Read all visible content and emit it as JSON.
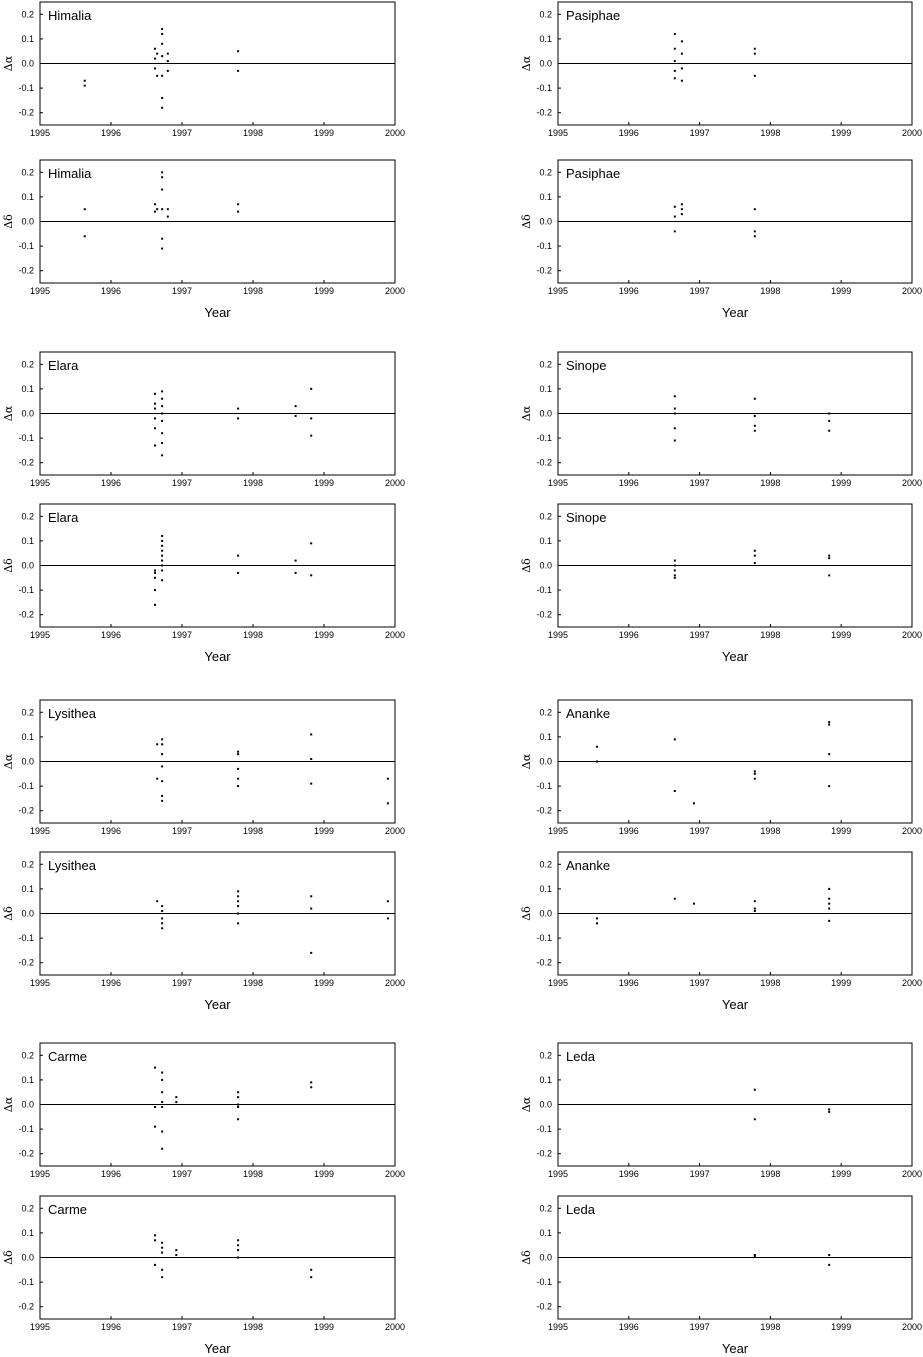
{
  "chart_data": [
    {
      "type": "scatter",
      "title": "Himalia",
      "ylabel": "Δα",
      "xlim": [
        1995,
        2000
      ],
      "ylim": [
        -0.25,
        0.25
      ],
      "xticks": [
        1995,
        1996,
        1997,
        1998,
        1999,
        2000
      ],
      "yticks": [
        -0.2,
        -0.1,
        {
          "value": 0,
          "label": "0.0"
        },
        0.1,
        0.2
      ],
      "color": "#000000",
      "x": [
        1995.63,
        1995.63,
        1996.62,
        1996.62,
        1996.62,
        1996.65,
        1996.65,
        1996.72,
        1996.72,
        1996.72,
        1996.72,
        1996.72,
        1996.72,
        1996.72,
        1996.8,
        1996.8,
        1996.8,
        1997.79,
        1997.79
      ],
      "y": [
        -0.07,
        -0.09,
        0.06,
        0.02,
        -0.02,
        0.04,
        -0.05,
        0.14,
        0.12,
        0.08,
        0.03,
        -0.05,
        -0.14,
        -0.18,
        0.04,
        0.01,
        -0.03,
        0.05,
        -0.03
      ]
    },
    {
      "type": "scatter",
      "title": "Pasiphae",
      "ylabel": "Δα",
      "xlim": [
        1995,
        2000
      ],
      "ylim": [
        -0.25,
        0.25
      ],
      "xticks": [
        1995,
        1996,
        1997,
        1998,
        1999,
        2000
      ],
      "yticks": [
        -0.2,
        -0.1,
        {
          "value": 0,
          "label": "0.0"
        },
        0.1,
        0.2
      ],
      "color": "#000000",
      "x": [
        1996.65,
        1996.65,
        1996.65,
        1996.65,
        1996.65,
        1996.75,
        1996.75,
        1996.75,
        1996.75,
        1997.78,
        1997.78,
        1997.78
      ],
      "y": [
        0.12,
        0.06,
        0.01,
        -0.03,
        -0.06,
        0.09,
        0.04,
        -0.02,
        -0.07,
        0.06,
        0.04,
        -0.05
      ]
    },
    {
      "type": "scatter",
      "title": "Himalia",
      "ylabel": "Δδ",
      "xlabel": "Year",
      "xlim": [
        1995,
        2000
      ],
      "ylim": [
        -0.25,
        0.25
      ],
      "xticks": [
        1995,
        1996,
        1997,
        1998,
        1999,
        2000
      ],
      "yticks": [
        -0.2,
        -0.1,
        {
          "value": 0,
          "label": "0.0"
        },
        0.1,
        0.2
      ],
      "color": "#000000",
      "x": [
        1995.63,
        1995.63,
        1996.62,
        1996.62,
        1996.65,
        1996.72,
        1996.72,
        1996.72,
        1996.72,
        1996.72,
        1996.72,
        1996.8,
        1996.8,
        1997.79,
        1997.79
      ],
      "y": [
        0.05,
        -0.06,
        0.07,
        0.04,
        0.05,
        0.2,
        0.18,
        0.13,
        0.05,
        -0.07,
        -0.11,
        0.05,
        0.02,
        0.07,
        0.04
      ]
    },
    {
      "type": "scatter",
      "title": "Pasiphae",
      "ylabel": "Δδ",
      "xlabel": "Year",
      "xlim": [
        1995,
        2000
      ],
      "ylim": [
        -0.25,
        0.25
      ],
      "xticks": [
        1995,
        1996,
        1997,
        1998,
        1999,
        2000
      ],
      "yticks": [
        -0.2,
        -0.1,
        {
          "value": 0,
          "label": "0.0"
        },
        0.1,
        0.2
      ],
      "color": "#000000",
      "x": [
        1996.65,
        1996.65,
        1996.65,
        1996.75,
        1996.75,
        1996.75,
        1997.78,
        1997.78,
        1997.78
      ],
      "y": [
        0.06,
        0.02,
        -0.04,
        0.07,
        0.05,
        0.03,
        0.05,
        -0.04,
        -0.06
      ]
    },
    {
      "type": "scatter",
      "title": "Elara",
      "ylabel": "Δα",
      "xlim": [
        1995,
        2000
      ],
      "ylim": [
        -0.25,
        0.25
      ],
      "xticks": [
        1995,
        1996,
        1997,
        1998,
        1999,
        2000
      ],
      "yticks": [
        -0.2,
        -0.1,
        {
          "value": 0,
          "label": "0.0"
        },
        0.1,
        0.2
      ],
      "color": "#000000",
      "x": [
        1996.62,
        1996.62,
        1996.62,
        1996.62,
        1996.62,
        1996.62,
        1996.72,
        1996.72,
        1996.72,
        1996.72,
        1996.72,
        1996.72,
        1996.72,
        1996.72,
        1997.79,
        1997.79,
        1998.6,
        1998.6,
        1998.82,
        1998.82,
        1998.82
      ],
      "y": [
        0.08,
        0.04,
        0.02,
        -0.02,
        -0.06,
        -0.13,
        0.09,
        0.06,
        0.03,
        0,
        -0.03,
        -0.08,
        -0.12,
        -0.17,
        0.02,
        -0.02,
        0.03,
        -0.01,
        0.1,
        -0.02,
        -0.09
      ]
    },
    {
      "type": "scatter",
      "title": "Sinope",
      "ylabel": "Δα",
      "xlim": [
        1995,
        2000
      ],
      "ylim": [
        -0.25,
        0.25
      ],
      "xticks": [
        1995,
        1996,
        1997,
        1998,
        1999,
        2000
      ],
      "yticks": [
        -0.2,
        -0.1,
        {
          "value": 0,
          "label": "0.0"
        },
        0.1,
        0.2
      ],
      "color": "#000000",
      "x": [
        1996.65,
        1996.65,
        1996.65,
        1996.65,
        1996.65,
        1997.78,
        1997.78,
        1997.78,
        1997.78,
        1998.83,
        1998.83,
        1998.83
      ],
      "y": [
        0.07,
        0.02,
        0,
        -0.06,
        -0.11,
        0.06,
        -0.01,
        -0.05,
        -0.07,
        0,
        -0.03,
        -0.07
      ]
    },
    {
      "type": "scatter",
      "title": "Elara",
      "ylabel": "Δδ",
      "xlabel": "Year",
      "xlim": [
        1995,
        2000
      ],
      "ylim": [
        -0.25,
        0.25
      ],
      "xticks": [
        1995,
        1996,
        1997,
        1998,
        1999,
        2000
      ],
      "yticks": [
        -0.2,
        -0.1,
        {
          "value": 0,
          "label": "0.0"
        },
        0.1,
        0.2
      ],
      "color": "#000000",
      "x": [
        1996.62,
        1996.62,
        1996.62,
        1996.62,
        1996.62,
        1996.72,
        1996.72,
        1996.72,
        1996.72,
        1996.72,
        1996.72,
        1996.72,
        1996.72,
        1996.72,
        1997.79,
        1997.79,
        1998.6,
        1998.6,
        1998.82,
        1998.82
      ],
      "y": [
        -0.03,
        -0.05,
        -0.02,
        -0.1,
        -0.16,
        0.12,
        0.1,
        0.08,
        0.06,
        0.04,
        0.02,
        0,
        -0.02,
        -0.06,
        0.04,
        -0.03,
        0.02,
        -0.03,
        0.09,
        -0.04
      ]
    },
    {
      "type": "scatter",
      "title": "Sinope",
      "ylabel": "Δδ",
      "xlabel": "Year",
      "xlim": [
        1995,
        2000
      ],
      "ylim": [
        -0.25,
        0.25
      ],
      "xticks": [
        1995,
        1996,
        1997,
        1998,
        1999,
        2000
      ],
      "yticks": [
        -0.2,
        -0.1,
        {
          "value": 0,
          "label": "0.0"
        },
        0.1,
        0.2
      ],
      "color": "#000000",
      "x": [
        1996.65,
        1996.65,
        1996.65,
        1996.65,
        1996.65,
        1997.78,
        1997.78,
        1997.78,
        1998.83,
        1998.83,
        1998.83
      ],
      "y": [
        0.02,
        0,
        -0.02,
        -0.04,
        -0.05,
        0.06,
        0.04,
        0.01,
        0.04,
        0.03,
        -0.04
      ]
    },
    {
      "type": "scatter",
      "title": "Lysithea",
      "ylabel": "Δα",
      "xlim": [
        1995,
        2000
      ],
      "ylim": [
        -0.25,
        0.25
      ],
      "xticks": [
        1995,
        1996,
        1997,
        1998,
        1999,
        2000
      ],
      "yticks": [
        -0.2,
        -0.1,
        {
          "value": 0,
          "label": "0.0"
        },
        0.1,
        0.2
      ],
      "color": "#000000",
      "x": [
        1996.65,
        1996.65,
        1996.72,
        1996.72,
        1996.72,
        1996.72,
        1996.72,
        1996.72,
        1996.72,
        1997.79,
        1997.79,
        1997.79,
        1997.79,
        1997.79,
        1998.82,
        1998.82,
        1998.82,
        1999.9,
        1999.9
      ],
      "y": [
        0.07,
        -0.07,
        0.09,
        0.07,
        0.03,
        -0.02,
        -0.08,
        -0.14,
        -0.16,
        0.04,
        0.03,
        -0.03,
        -0.07,
        -0.1,
        0.11,
        0.01,
        -0.09,
        -0.07,
        -0.17
      ]
    },
    {
      "type": "scatter",
      "title": "Ananke",
      "ylabel": "Δα",
      "xlim": [
        1995,
        2000
      ],
      "ylim": [
        -0.25,
        0.25
      ],
      "xticks": [
        1995,
        1996,
        1997,
        1998,
        1999,
        2000
      ],
      "yticks": [
        -0.2,
        -0.1,
        {
          "value": 0,
          "label": "0.0"
        },
        0.1,
        0.2
      ],
      "color": "#000000",
      "x": [
        1995.55,
        1995.55,
        1996.65,
        1996.65,
        1996.92,
        1997.78,
        1997.78,
        1997.78,
        1998.83,
        1998.83,
        1998.83,
        1998.83
      ],
      "y": [
        0.06,
        0,
        0.09,
        -0.12,
        -0.17,
        -0.04,
        -0.05,
        -0.07,
        0.16,
        0.15,
        0.03,
        -0.1
      ]
    },
    {
      "type": "scatter",
      "title": "Lysithea",
      "ylabel": "Δδ",
      "xlabel": "Year",
      "xlim": [
        1995,
        2000
      ],
      "ylim": [
        -0.25,
        0.25
      ],
      "xticks": [
        1995,
        1996,
        1997,
        1998,
        1999,
        2000
      ],
      "yticks": [
        -0.2,
        -0.1,
        {
          "value": 0,
          "label": "0.0"
        },
        0.1,
        0.2
      ],
      "color": "#000000",
      "x": [
        1996.65,
        1996.72,
        1996.72,
        1996.72,
        1996.72,
        1996.72,
        1997.79,
        1997.79,
        1997.79,
        1997.79,
        1997.79,
        1997.79,
        1998.82,
        1998.82,
        1998.82,
        1999.9,
        1999.9
      ],
      "y": [
        0.05,
        0.03,
        0.01,
        -0.02,
        -0.04,
        -0.06,
        0.09,
        0.07,
        0.05,
        0.03,
        0,
        -0.04,
        0.07,
        0.02,
        -0.16,
        0.05,
        -0.02
      ]
    },
    {
      "type": "scatter",
      "title": "Ananke",
      "ylabel": "Δδ",
      "xlabel": "Year",
      "xlim": [
        1995,
        2000
      ],
      "ylim": [
        -0.25,
        0.25
      ],
      "xticks": [
        1995,
        1996,
        1997,
        1998,
        1999,
        2000
      ],
      "yticks": [
        -0.2,
        -0.1,
        {
          "value": 0,
          "label": "0.0"
        },
        0.1,
        0.2
      ],
      "color": "#000000",
      "x": [
        1995.55,
        1995.55,
        1996.65,
        1996.92,
        1997.78,
        1997.78,
        1997.78,
        1998.83,
        1998.83,
        1998.83,
        1998.83,
        1998.83
      ],
      "y": [
        -0.02,
        -0.04,
        0.06,
        0.04,
        0.05,
        0.02,
        0.01,
        0.1,
        0.06,
        0.04,
        0.02,
        -0.03
      ]
    },
    {
      "type": "scatter",
      "title": "Carme",
      "ylabel": "Δα",
      "xlim": [
        1995,
        2000
      ],
      "ylim": [
        -0.25,
        0.25
      ],
      "xticks": [
        1995,
        1996,
        1997,
        1998,
        1999,
        2000
      ],
      "yticks": [
        -0.2,
        -0.1,
        {
          "value": 0,
          "label": "0.0"
        },
        0.1,
        0.2
      ],
      "color": "#000000",
      "x": [
        1996.62,
        1996.62,
        1996.62,
        1996.72,
        1996.72,
        1996.72,
        1996.72,
        1996.72,
        1996.72,
        1996.72,
        1996.92,
        1996.92,
        1997.79,
        1997.79,
        1997.79,
        1997.79,
        1997.79,
        1998.82,
        1998.82
      ],
      "y": [
        0.15,
        -0.01,
        -0.09,
        0.13,
        0.1,
        0.05,
        0.01,
        -0.01,
        -0.11,
        -0.18,
        0.03,
        0.01,
        0.05,
        0.03,
        0,
        -0.01,
        -0.06,
        0.09,
        0.07
      ]
    },
    {
      "type": "scatter",
      "title": "Leda",
      "ylabel": "Δα",
      "xlim": [
        1995,
        2000
      ],
      "ylim": [
        -0.25,
        0.25
      ],
      "xticks": [
        1995,
        1996,
        1997,
        1998,
        1999,
        2000
      ],
      "yticks": [
        -0.2,
        -0.1,
        {
          "value": 0,
          "label": "0.0"
        },
        0.1,
        0.2
      ],
      "color": "#000000",
      "x": [
        1997.78,
        1997.78,
        1998.83,
        1998.83
      ],
      "y": [
        0.06,
        -0.06,
        -0.02,
        -0.03
      ]
    },
    {
      "type": "scatter",
      "title": "Carme",
      "ylabel": "Δδ",
      "xlabel": "Year",
      "xlim": [
        1995,
        2000
      ],
      "ylim": [
        -0.25,
        0.25
      ],
      "xticks": [
        1995,
        1996,
        1997,
        1998,
        1999,
        2000
      ],
      "yticks": [
        -0.2,
        -0.1,
        {
          "value": 0,
          "label": "0.0"
        },
        0.1,
        0.2
      ],
      "color": "#000000",
      "x": [
        1996.62,
        1996.62,
        1996.62,
        1996.72,
        1996.72,
        1996.72,
        1996.72,
        1996.72,
        1996.92,
        1996.92,
        1997.79,
        1997.79,
        1997.79,
        1997.79,
        1998.82,
        1998.82
      ],
      "y": [
        0.09,
        0.07,
        -0.03,
        0.06,
        0.04,
        0.02,
        -0.05,
        -0.08,
        0.03,
        0.01,
        0.07,
        0.05,
        0.03,
        0,
        -0.05,
        -0.08
      ]
    },
    {
      "type": "scatter",
      "title": "Leda",
      "ylabel": "Δδ",
      "xlabel": "Year",
      "xlim": [
        1995,
        2000
      ],
      "ylim": [
        -0.25,
        0.25
      ],
      "xticks": [
        1995,
        1996,
        1997,
        1998,
        1999,
        2000
      ],
      "yticks": [
        -0.2,
        -0.1,
        {
          "value": 0,
          "label": "0.0"
        },
        0.1,
        0.2
      ],
      "color": "#000000",
      "x": [
        1997.78,
        1997.78,
        1998.83,
        1998.83
      ],
      "y": [
        0.01,
        0.005,
        0.01,
        -0.03
      ]
    }
  ]
}
